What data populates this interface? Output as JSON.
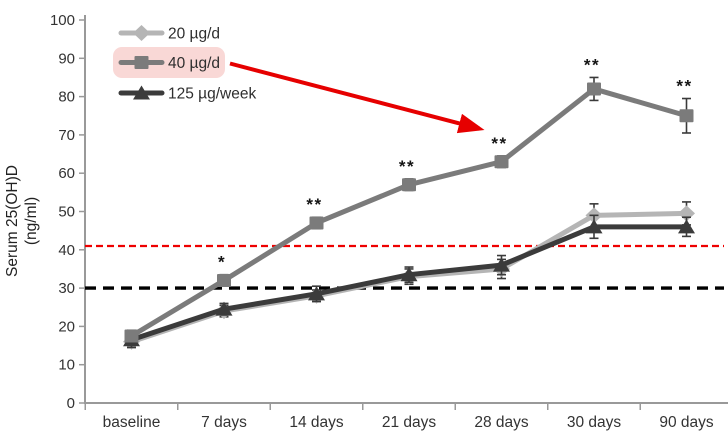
{
  "figure": {
    "y_axis_title_line1": "Serum 25(OH)D",
    "y_axis_title_line2": "(ng/ml)"
  },
  "chart_data": {
    "type": "line",
    "title": "",
    "xlabel": "",
    "ylabel": "Serum 25(OH)D (ng/ml)",
    "ylim": [
      0,
      100
    ],
    "ytick_step": 10,
    "yticks": [
      0,
      10,
      20,
      30,
      40,
      50,
      60,
      70,
      80,
      90,
      100
    ],
    "grid": false,
    "legend_position": "top-left-inside",
    "categories": [
      "baseline",
      "7 days",
      "14 days",
      "21 days",
      "28 days",
      "30 days",
      "90 days"
    ],
    "series": [
      {
        "name": "20 µg/d",
        "marker": "diamond",
        "color": "#b5b5b5",
        "values": [
          16,
          24,
          28,
          33,
          35,
          49,
          49.5
        ],
        "errors": [
          1.5,
          1.5,
          1.5,
          2,
          2.5,
          3,
          3
        ],
        "significance": [
          "",
          "",
          "",
          "",
          "",
          "",
          ""
        ]
      },
      {
        "name": "40 µg/d",
        "marker": "square",
        "color": "#7b7b7b",
        "values": [
          17.5,
          32,
          47,
          57,
          63,
          82,
          75
        ],
        "errors": [
          1.5,
          1.5,
          1.5,
          1.5,
          1.5,
          3,
          4.5
        ],
        "significance": [
          "",
          "*",
          "**",
          "**",
          "**",
          "**",
          "**"
        ],
        "legend_highlighted": true
      },
      {
        "name": "125 µg/week",
        "marker": "triangle",
        "color": "#3b3b3b",
        "values": [
          16.5,
          24.5,
          28.5,
          33.5,
          36,
          46,
          46
        ],
        "errors": [
          2,
          1.5,
          2,
          2,
          2.5,
          3,
          2.5
        ],
        "significance": [
          "",
          "",
          "",
          "",
          "",
          "",
          ""
        ]
      }
    ],
    "draw_order": [
      0,
      2,
      1
    ],
    "reference_lines": [
      {
        "value": 41,
        "color": "#ee0000",
        "style": "dashed"
      },
      {
        "value": 30,
        "color": "#000000",
        "style": "dashed"
      }
    ],
    "legend": {
      "items": [
        "20 µg/d",
        "40 µg/d",
        "125 µg/week"
      ],
      "highlight": {
        "item": "40 µg/d",
        "color": "#f9d8d6"
      }
    },
    "annotation": {
      "type": "arrow",
      "color": "#e60000",
      "from": "legend item 40 µg/d",
      "points_to": {
        "series": "40 µg/d",
        "category": "28 days"
      }
    },
    "error_bar_color": "#3a3a3a",
    "axis_color": "#999999",
    "tick_label_color": "#333333",
    "significance_color": "#141414"
  }
}
